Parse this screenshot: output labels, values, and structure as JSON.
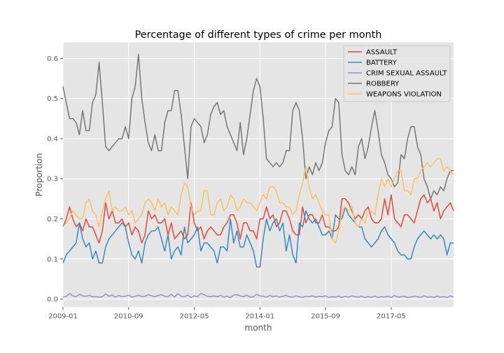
{
  "chart_data": {
    "type": "line",
    "title": "Percentage of different types of crime per month",
    "xlabel": "month",
    "ylabel": "Proportion",
    "x_ticks": [
      "2009-01",
      "2010-09",
      "2012-05",
      "2014-01",
      "2015-09",
      "2017-05"
    ],
    "x_tick_months": [
      0,
      20,
      40,
      60,
      80,
      100
    ],
    "xlim_months": [
      0,
      119
    ],
    "ylim": [
      -0.02,
      0.64
    ],
    "y_ticks": [
      0.0,
      0.1,
      0.2,
      0.3,
      0.4,
      0.5,
      0.6
    ],
    "y_tick_labels": [
      "0.0",
      "0.1",
      "0.2",
      "0.3",
      "0.4",
      "0.5",
      "0.6"
    ],
    "grid": true,
    "legend_position": "upper-right",
    "series": [
      {
        "name": "ASSAULT",
        "color": "#e24a33",
        "values": [
          0.18,
          0.2,
          0.23,
          0.2,
          0.18,
          0.19,
          0.17,
          0.2,
          0.18,
          0.18,
          0.16,
          0.14,
          0.17,
          0.24,
          0.2,
          0.22,
          0.19,
          0.19,
          0.2,
          0.18,
          0.19,
          0.16,
          0.18,
          0.17,
          0.14,
          0.16,
          0.22,
          0.2,
          0.21,
          0.19,
          0.19,
          0.2,
          0.16,
          0.19,
          0.15,
          0.16,
          0.17,
          0.15,
          0.16,
          0.24,
          0.19,
          0.17,
          0.18,
          0.15,
          0.17,
          0.18,
          0.17,
          0.16,
          0.16,
          0.18,
          0.19,
          0.21,
          0.21,
          0.19,
          0.15,
          0.19,
          0.19,
          0.17,
          0.17,
          0.15,
          0.2,
          0.2,
          0.23,
          0.2,
          0.21,
          0.18,
          0.19,
          0.22,
          0.22,
          0.2,
          0.17,
          0.16,
          0.16,
          0.23,
          0.19,
          0.21,
          0.21,
          0.19,
          0.19,
          0.21,
          0.18,
          0.18,
          0.17,
          0.17,
          0.18,
          0.25,
          0.25,
          0.24,
          0.22,
          0.2,
          0.21,
          0.2,
          0.22,
          0.23,
          0.2,
          0.19,
          0.19,
          0.2,
          0.25,
          0.21,
          0.26,
          0.2,
          0.19,
          0.18,
          0.21,
          0.21,
          0.2,
          0.19,
          0.22,
          0.25,
          0.26,
          0.24,
          0.25,
          0.22,
          0.24,
          0.2,
          0.22,
          0.23,
          0.24,
          0.22
        ]
      },
      {
        "name": "BATTERY",
        "color": "#348abd",
        "values": [
          0.09,
          0.11,
          0.12,
          0.13,
          0.14,
          0.19,
          0.15,
          0.13,
          0.14,
          0.1,
          0.12,
          0.09,
          0.09,
          0.13,
          0.15,
          0.16,
          0.17,
          0.18,
          0.19,
          0.18,
          0.14,
          0.11,
          0.1,
          0.12,
          0.09,
          0.14,
          0.16,
          0.17,
          0.17,
          0.18,
          0.15,
          0.12,
          0.16,
          0.1,
          0.12,
          0.13,
          0.11,
          0.18,
          0.14,
          0.15,
          0.16,
          0.18,
          0.12,
          0.14,
          0.14,
          0.13,
          0.12,
          0.09,
          0.13,
          0.13,
          0.12,
          0.2,
          0.14,
          0.17,
          0.13,
          0.13,
          0.16,
          0.14,
          0.12,
          0.08,
          0.08,
          0.15,
          0.2,
          0.17,
          0.19,
          0.2,
          0.17,
          0.19,
          0.12,
          0.16,
          0.11,
          0.09,
          0.19,
          0.18,
          0.22,
          0.2,
          0.19,
          0.2,
          0.18,
          0.16,
          0.16,
          0.17,
          0.15,
          0.21,
          0.2,
          0.2,
          0.23,
          0.21,
          0.2,
          0.19,
          0.18,
          0.18,
          0.15,
          0.14,
          0.13,
          0.14,
          0.15,
          0.17,
          0.18,
          0.16,
          0.15,
          0.14,
          0.12,
          0.11,
          0.11,
          0.1,
          0.1,
          0.13,
          0.15,
          0.16,
          0.17,
          0.16,
          0.15,
          0.16,
          0.15,
          0.16,
          0.15,
          0.11,
          0.14,
          0.14
        ]
      },
      {
        "name": "CRIM SEXUAL ASSAULT",
        "color": "#988ed5",
        "values": [
          0.005,
          0.007,
          0.014,
          0.008,
          0.006,
          0.012,
          0.008,
          0.007,
          0.009,
          0.006,
          0.006,
          0.005,
          0.006,
          0.013,
          0.007,
          0.01,
          0.005,
          0.009,
          0.006,
          0.007,
          0.01,
          0.005,
          0.007,
          0.01,
          0.006,
          0.007,
          0.011,
          0.008,
          0.006,
          0.009,
          0.011,
          0.007,
          0.006,
          0.012,
          0.005,
          0.014,
          0.007,
          0.006,
          0.01,
          0.004,
          0.008,
          0.006,
          0.014,
          0.011,
          0.007,
          0.006,
          0.008,
          0.006,
          0.009,
          0.005,
          0.007,
          0.004,
          0.01,
          0.011,
          0.008,
          0.006,
          0.01,
          0.005,
          0.006,
          0.012,
          0.008,
          0.007,
          0.005,
          0.009,
          0.006,
          0.008,
          0.005,
          0.007,
          0.009,
          0.006,
          0.005,
          0.008,
          0.006,
          0.004,
          0.007,
          0.006,
          0.008,
          0.005,
          0.007,
          0.006,
          0.008,
          0.004,
          0.006,
          0.005,
          0.007,
          0.004,
          0.007,
          0.005,
          0.008,
          0.006,
          0.005,
          0.007,
          0.004,
          0.006,
          0.005,
          0.007,
          0.004,
          0.006,
          0.005,
          0.007,
          0.004,
          0.009,
          0.005,
          0.006,
          0.007,
          0.004,
          0.005,
          0.007,
          0.006,
          0.004,
          0.008,
          0.005,
          0.006,
          0.004,
          0.007,
          0.005,
          0.006,
          0.004,
          0.008,
          0.005
        ]
      },
      {
        "name": "ROBBERY",
        "color": "#777777",
        "values": [
          0.53,
          0.49,
          0.45,
          0.45,
          0.44,
          0.41,
          0.47,
          0.42,
          0.42,
          0.49,
          0.51,
          0.59,
          0.49,
          0.38,
          0.37,
          0.38,
          0.39,
          0.4,
          0.4,
          0.43,
          0.4,
          0.5,
          0.53,
          0.61,
          0.5,
          0.44,
          0.39,
          0.37,
          0.41,
          0.37,
          0.37,
          0.44,
          0.47,
          0.47,
          0.52,
          0.52,
          0.46,
          0.38,
          0.3,
          0.43,
          0.45,
          0.44,
          0.43,
          0.39,
          0.41,
          0.46,
          0.48,
          0.49,
          0.46,
          0.47,
          0.43,
          0.41,
          0.39,
          0.37,
          0.44,
          0.36,
          0.4,
          0.46,
          0.52,
          0.55,
          0.53,
          0.45,
          0.35,
          0.34,
          0.33,
          0.34,
          0.33,
          0.34,
          0.37,
          0.37,
          0.47,
          0.49,
          0.47,
          0.4,
          0.3,
          0.33,
          0.31,
          0.34,
          0.32,
          0.34,
          0.39,
          0.42,
          0.43,
          0.5,
          0.49,
          0.36,
          0.32,
          0.31,
          0.33,
          0.31,
          0.38,
          0.4,
          0.35,
          0.38,
          0.43,
          0.47,
          0.42,
          0.36,
          0.34,
          0.31,
          0.3,
          0.28,
          0.29,
          0.36,
          0.35,
          0.4,
          0.43,
          0.43,
          0.38,
          0.36,
          0.3,
          0.28,
          0.25,
          0.27,
          0.26,
          0.28,
          0.27,
          0.3,
          0.32,
          0.32
        ]
      },
      {
        "name": "WEAPONS VIOLATION",
        "color": "#fbc15e",
        "values": [
          0.18,
          0.19,
          0.2,
          0.22,
          0.21,
          0.2,
          0.2,
          0.24,
          0.25,
          0.22,
          0.21,
          0.18,
          0.22,
          0.25,
          0.27,
          0.22,
          0.23,
          0.22,
          0.22,
          0.23,
          0.21,
          0.22,
          0.19,
          0.2,
          0.21,
          0.24,
          0.25,
          0.24,
          0.22,
          0.25,
          0.23,
          0.24,
          0.21,
          0.23,
          0.22,
          0.21,
          0.26,
          0.29,
          0.28,
          0.23,
          0.21,
          0.22,
          0.22,
          0.27,
          0.27,
          0.21,
          0.21,
          0.24,
          0.25,
          0.22,
          0.23,
          0.26,
          0.25,
          0.22,
          0.23,
          0.25,
          0.24,
          0.24,
          0.23,
          0.22,
          0.24,
          0.26,
          0.25,
          0.28,
          0.28,
          0.27,
          0.24,
          0.24,
          0.23,
          0.23,
          0.21,
          0.22,
          0.26,
          0.29,
          0.33,
          0.28,
          0.25,
          0.26,
          0.24,
          0.22,
          0.21,
          0.21,
          0.15,
          0.14,
          0.17,
          0.22,
          0.23,
          0.22,
          0.23,
          0.19,
          0.18,
          0.2,
          0.19,
          0.22,
          0.22,
          0.21,
          0.26,
          0.3,
          0.28,
          0.3,
          0.28,
          0.3,
          0.32,
          0.32,
          0.27,
          0.27,
          0.26,
          0.3,
          0.3,
          0.32,
          0.33,
          0.34,
          0.33,
          0.34,
          0.35,
          0.35,
          0.32,
          0.33,
          0.32,
          0.31
        ]
      }
    ]
  }
}
